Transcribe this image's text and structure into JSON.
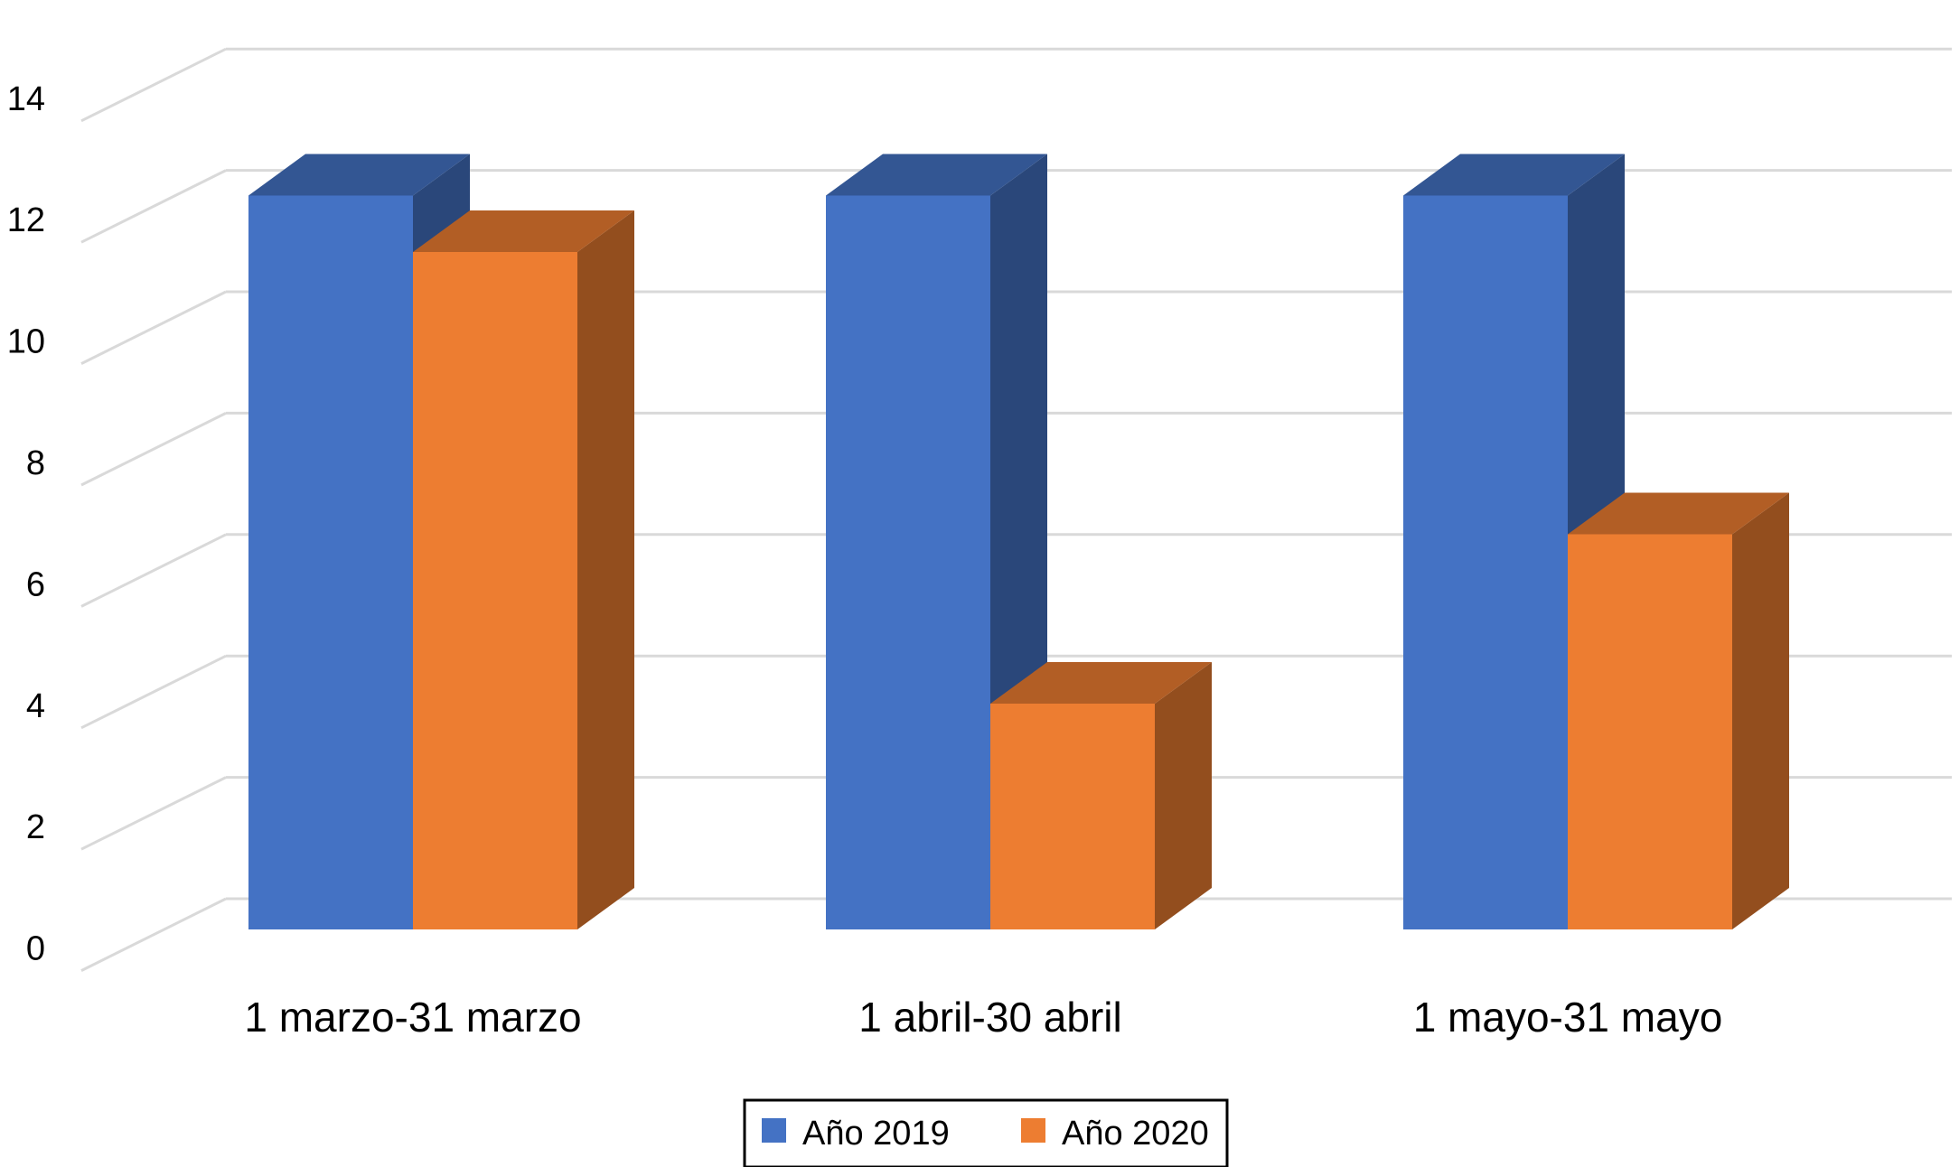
{
  "chart_data": {
    "type": "bar",
    "categories": [
      "1 marzo-31 marzo",
      "1 abril-30 abril",
      "1 mayo-31 mayo"
    ],
    "series": [
      {
        "name": "Año 2019",
        "values": [
          13,
          13,
          13
        ],
        "color": "#4472C4"
      },
      {
        "name": "Año 2020",
        "values": [
          12,
          4,
          7
        ],
        "color": "#ED7D31"
      }
    ],
    "ylim": [
      0,
      14
    ],
    "yticks": [
      "0",
      "2",
      "4",
      "6",
      "8",
      "10",
      "12",
      "14"
    ],
    "grid": true,
    "legend": "bottom",
    "style": "3d-column"
  }
}
